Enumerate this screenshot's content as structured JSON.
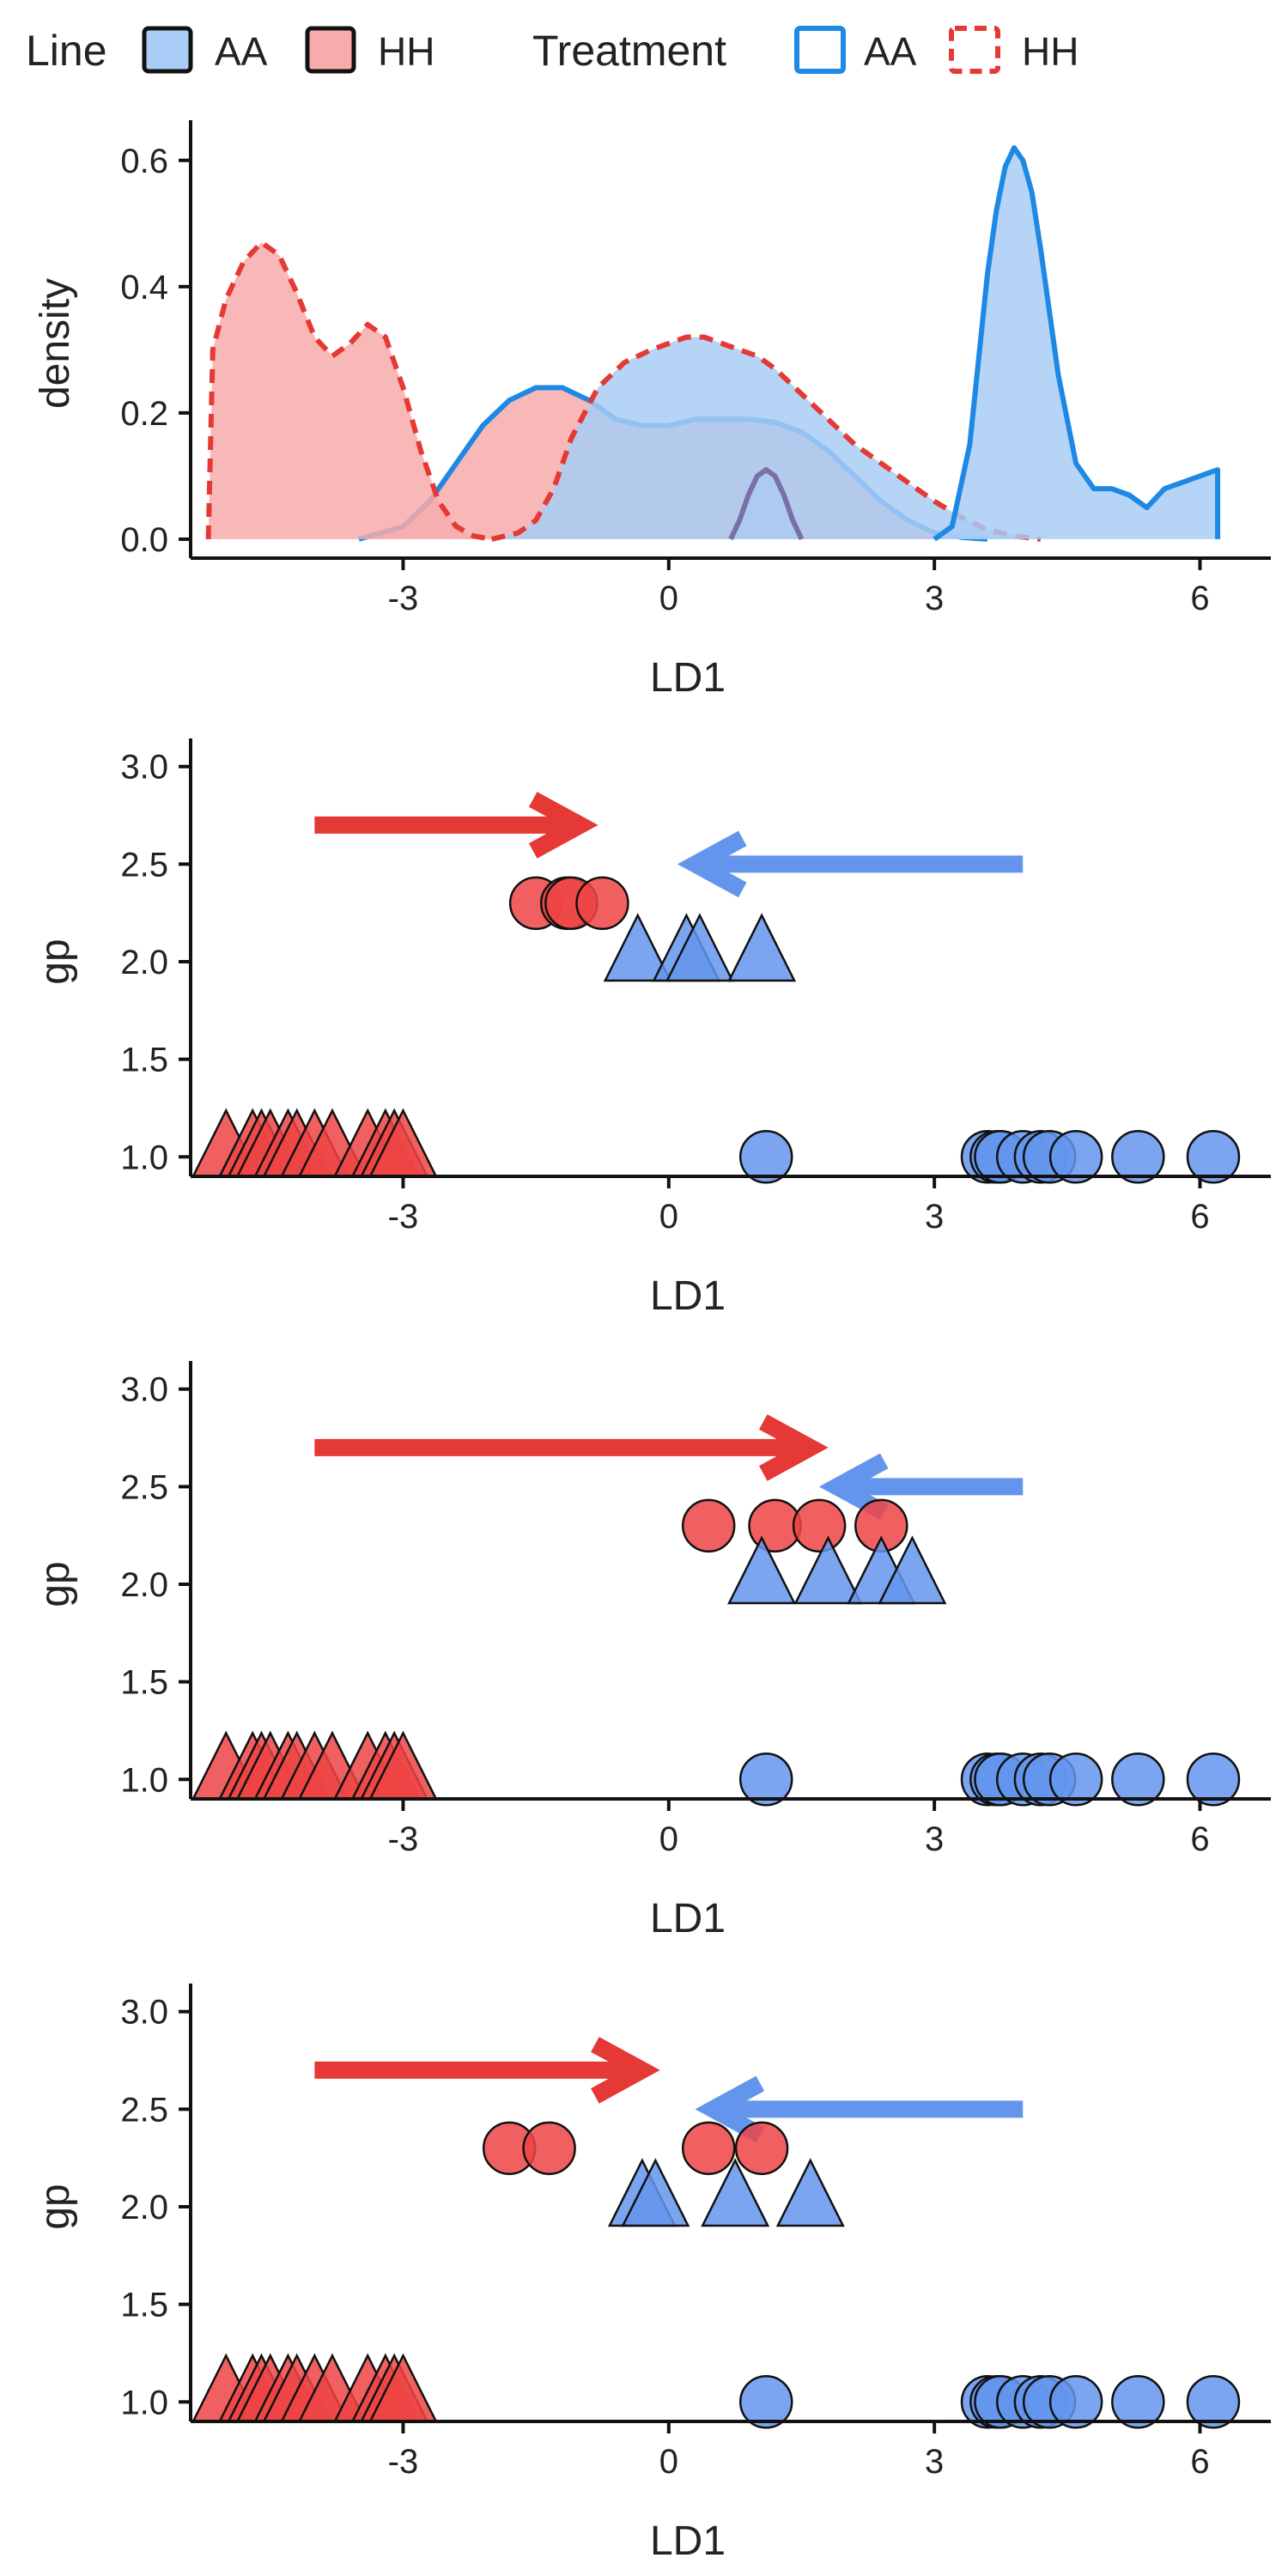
{
  "legend": {
    "line_title": "Line",
    "line_items": [
      {
        "label": "AA",
        "color": "#A8CCF5"
      },
      {
        "label": "HH",
        "color": "#F7ABAB"
      }
    ],
    "treatment_title": "Treatment",
    "treatment_items": [
      {
        "label": "AA",
        "color": "#1E88E5",
        "linetype": "solid"
      },
      {
        "label": "HH",
        "color": "#E53935",
        "linetype": "dashed"
      }
    ]
  },
  "colors": {
    "aa_fill": "#A8CCF5",
    "hh_fill": "#F7ABAB",
    "aa_line": "#1E88E5",
    "hh_line": "#E53935",
    "aa_point": "#6495ED",
    "hh_point": "#EE4444"
  },
  "chart_data": [
    {
      "type": "area",
      "xlabel": "LD1",
      "ylabel": "density",
      "xlim": [
        -5.4,
        6.8
      ],
      "ylim": [
        -0.03,
        0.65
      ],
      "xticks": [
        -3,
        0,
        3,
        6
      ],
      "xtick_labels": [
        "-3",
        "0",
        "3",
        "6"
      ],
      "yticks": [
        0.0,
        0.2,
        0.4,
        0.6
      ],
      "ytick_labels": [
        "0.0",
        "0.2",
        "0.4",
        "0.6"
      ],
      "series": [
        {
          "line": "HH",
          "treatment": "HH",
          "x": [
            -5.2,
            -5.15,
            -5.0,
            -4.8,
            -4.6,
            -4.4,
            -4.2,
            -4.0,
            -3.8,
            -3.6,
            -3.4,
            -3.2,
            -3.0,
            -2.8,
            -2.6,
            -2.4,
            -2.2,
            -2.0
          ],
          "y": [
            0.0,
            0.3,
            0.38,
            0.44,
            0.47,
            0.45,
            0.39,
            0.32,
            0.29,
            0.31,
            0.34,
            0.32,
            0.24,
            0.14,
            0.06,
            0.02,
            0.005,
            0.0
          ]
        },
        {
          "line": "AA",
          "treatment": "AA",
          "x": [
            3.0,
            3.2,
            3.4,
            3.6,
            3.7,
            3.8,
            3.9,
            4.0,
            4.1,
            4.2,
            4.4,
            4.6,
            4.8,
            5.0,
            5.2,
            5.4,
            5.6,
            5.8,
            6.0,
            6.2,
            6.2
          ],
          "y": [
            0.0,
            0.02,
            0.15,
            0.42,
            0.52,
            0.59,
            0.62,
            0.6,
            0.55,
            0.46,
            0.26,
            0.12,
            0.08,
            0.08,
            0.07,
            0.05,
            0.08,
            0.09,
            0.1,
            0.11,
            0.0
          ]
        },
        {
          "line": "AA",
          "treatment": "HH",
          "x": [
            -2.0,
            -1.7,
            -1.5,
            -1.3,
            -1.1,
            -0.8,
            -0.5,
            -0.2,
            0.0,
            0.2,
            0.4,
            0.6,
            0.8,
            1.0,
            1.2,
            1.5,
            1.8,
            2.1,
            2.4,
            2.7,
            3.0,
            3.3,
            3.6,
            3.9,
            4.2
          ],
          "y": [
            0.0,
            0.01,
            0.03,
            0.08,
            0.16,
            0.24,
            0.28,
            0.3,
            0.31,
            0.32,
            0.32,
            0.31,
            0.3,
            0.29,
            0.27,
            0.23,
            0.19,
            0.15,
            0.12,
            0.09,
            0.06,
            0.035,
            0.015,
            0.005,
            0.0
          ]
        },
        {
          "line": "HH",
          "treatment": "AA",
          "x": [
            -3.5,
            -3.0,
            -2.7,
            -2.4,
            -2.1,
            -1.8,
            -1.5,
            -1.2,
            -0.9,
            -0.6,
            -0.3,
            0.0,
            0.3,
            0.6,
            0.9,
            1.2,
            1.5,
            1.8,
            2.1,
            2.4,
            2.7,
            3.0,
            3.3,
            3.6
          ],
          "y": [
            0.0,
            0.02,
            0.06,
            0.12,
            0.18,
            0.22,
            0.24,
            0.24,
            0.22,
            0.19,
            0.18,
            0.18,
            0.19,
            0.19,
            0.19,
            0.185,
            0.17,
            0.14,
            0.1,
            0.06,
            0.03,
            0.01,
            0.003,
            0.0
          ]
        },
        {
          "line": "AA",
          "treatment": "AA",
          "note_hidden": false,
          "x": [
            0.7,
            0.8,
            0.9,
            1.0,
            1.1,
            1.2,
            1.3,
            1.4,
            1.5
          ],
          "y": [
            0.0,
            0.03,
            0.07,
            0.1,
            0.11,
            0.1,
            0.07,
            0.03,
            0.0
          ]
        }
      ]
    },
    {
      "type": "scatter",
      "xlabel": "LD1",
      "ylabel": "gp",
      "xlim": [
        -5.4,
        6.8
      ],
      "ylim": [
        0.9,
        3.1
      ],
      "xticks": [
        -3,
        0,
        3,
        6
      ],
      "xtick_labels": [
        "-3",
        "0",
        "3",
        "6"
      ],
      "yticks": [
        1.0,
        1.5,
        2.0,
        2.5,
        3.0
      ],
      "ytick_labels": [
        "1.0",
        "1.5",
        "2.0",
        "2.5",
        "3.0"
      ],
      "arrows": [
        {
          "color": "hh",
          "x_from": -4.0,
          "x_to": -1.0,
          "y": 2.7
        },
        {
          "color": "aa",
          "x_from": 4.0,
          "x_to": 0.3,
          "y": 2.5
        }
      ],
      "series": [
        {
          "name": "HH circles",
          "shape": "circle",
          "color": "hh",
          "y": 2.3,
          "x": [
            -1.5,
            -1.15,
            -1.1,
            -0.75
          ]
        },
        {
          "name": "AA triangles",
          "shape": "triangle",
          "color": "aa",
          "y": 2.0,
          "x": [
            -0.35,
            0.2,
            0.35,
            1.05
          ]
        },
        {
          "name": "HH triangles",
          "shape": "triangle",
          "color": "hh",
          "y": 1.0,
          "x": [
            -5.0,
            -4.7,
            -4.6,
            -4.5,
            -4.3,
            -4.2,
            -4.0,
            -3.8,
            -3.4,
            -3.2,
            -3.1,
            -3.0
          ]
        },
        {
          "name": "AA circles",
          "shape": "circle",
          "color": "aa",
          "y": 1.0,
          "x": [
            1.1,
            3.6,
            3.7,
            3.75,
            4.0,
            4.2,
            4.3,
            4.6,
            5.3,
            6.15
          ]
        }
      ]
    },
    {
      "type": "scatter",
      "xlabel": "LD1",
      "ylabel": "gp",
      "xlim": [
        -5.4,
        6.8
      ],
      "ylim": [
        0.9,
        3.1
      ],
      "xticks": [
        -3,
        0,
        3,
        6
      ],
      "xtick_labels": [
        "-3",
        "0",
        "3",
        "6"
      ],
      "yticks": [
        1.0,
        1.5,
        2.0,
        2.5,
        3.0
      ],
      "ytick_labels": [
        "1.0",
        "1.5",
        "2.0",
        "2.5",
        "3.0"
      ],
      "arrows": [
        {
          "color": "hh",
          "x_from": -4.0,
          "x_to": 1.6,
          "y": 2.7
        },
        {
          "color": "aa",
          "x_from": 4.0,
          "x_to": 1.9,
          "y": 2.5
        }
      ],
      "series": [
        {
          "name": "HH circles",
          "shape": "circle",
          "color": "hh",
          "y": 2.3,
          "x": [
            0.45,
            1.2,
            1.7,
            2.4
          ]
        },
        {
          "name": "AA triangles",
          "shape": "triangle",
          "color": "aa",
          "y": 2.0,
          "x": [
            1.05,
            1.8,
            2.4,
            2.75
          ]
        },
        {
          "name": "HH triangles",
          "shape": "triangle",
          "color": "hh",
          "y": 1.0,
          "x": [
            -5.0,
            -4.7,
            -4.6,
            -4.5,
            -4.3,
            -4.2,
            -4.0,
            -3.8,
            -3.4,
            -3.2,
            -3.1,
            -3.0
          ]
        },
        {
          "name": "AA circles",
          "shape": "circle",
          "color": "aa",
          "y": 1.0,
          "x": [
            1.1,
            3.6,
            3.7,
            3.75,
            4.0,
            4.2,
            4.3,
            4.6,
            5.3,
            6.15
          ]
        }
      ]
    },
    {
      "type": "scatter",
      "xlabel": "LD1",
      "ylabel": "gp",
      "xlim": [
        -5.4,
        6.8
      ],
      "ylim": [
        0.9,
        3.1
      ],
      "xticks": [
        -3,
        0,
        3,
        6
      ],
      "xtick_labels": [
        "-3",
        "0",
        "3",
        "6"
      ],
      "yticks": [
        1.0,
        1.5,
        2.0,
        2.5,
        3.0
      ],
      "ytick_labels": [
        "1.0",
        "1.5",
        "2.0",
        "2.5",
        "3.0"
      ],
      "arrows": [
        {
          "color": "hh",
          "x_from": -4.0,
          "x_to": -0.3,
          "y": 2.7
        },
        {
          "color": "aa",
          "x_from": 4.0,
          "x_to": 0.5,
          "y": 2.5
        }
      ],
      "series": [
        {
          "name": "HH circles",
          "shape": "circle",
          "color": "hh",
          "y": 2.3,
          "x": [
            -1.8,
            -1.35,
            0.45,
            1.05
          ]
        },
        {
          "name": "AA triangles",
          "shape": "triangle",
          "color": "aa",
          "y": 2.0,
          "x": [
            -0.3,
            -0.15,
            0.75,
            1.6
          ]
        },
        {
          "name": "HH triangles",
          "shape": "triangle",
          "color": "hh",
          "y": 1.0,
          "x": [
            -5.0,
            -4.7,
            -4.6,
            -4.5,
            -4.3,
            -4.2,
            -4.0,
            -3.8,
            -3.4,
            -3.2,
            -3.1,
            -3.0
          ]
        },
        {
          "name": "AA circles",
          "shape": "circle",
          "color": "aa",
          "y": 1.0,
          "x": [
            1.1,
            3.6,
            3.7,
            3.75,
            4.0,
            4.2,
            4.3,
            4.6,
            5.3,
            6.15
          ]
        }
      ]
    }
  ]
}
